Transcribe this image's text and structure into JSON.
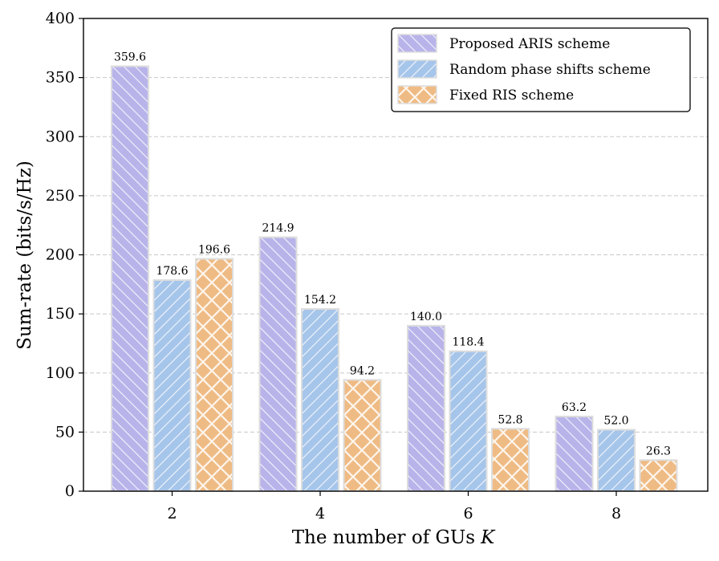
{
  "chart_data": {
    "type": "bar",
    "title": "",
    "xlabel": "The number of GUs",
    "xlabel_var": "K",
    "ylabel": "Sum-rate (bits/s/Hz)",
    "categories": [
      "2",
      "4",
      "6",
      "8"
    ],
    "ylim": [
      0,
      400
    ],
    "yticks": [
      0,
      50,
      100,
      150,
      200,
      250,
      300,
      350,
      400
    ],
    "grid": "horizontal-dashed",
    "legend_position": "top-right",
    "series": [
      {
        "name": "Proposed ARIS scheme",
        "color": "#b8b4ea",
        "hatch": "diagonal",
        "values": [
          359.6,
          214.9,
          140.0,
          63.2
        ],
        "labels": [
          "359.6",
          "214.9",
          "140.0",
          "63.2"
        ]
      },
      {
        "name": "Random phase shifts scheme",
        "color": "#a6c5ea",
        "hatch": "back-diagonal",
        "values": [
          178.6,
          154.2,
          118.4,
          52.0
        ],
        "labels": [
          "178.6",
          "154.2",
          "118.4",
          "52.0"
        ]
      },
      {
        "name": "Fixed RIS scheme",
        "color": "#efbb84",
        "hatch": "cross",
        "values": [
          196.6,
          94.2,
          52.8,
          26.3
        ],
        "labels": [
          "196.6",
          "94.2",
          "52.8",
          "26.3"
        ]
      }
    ]
  }
}
